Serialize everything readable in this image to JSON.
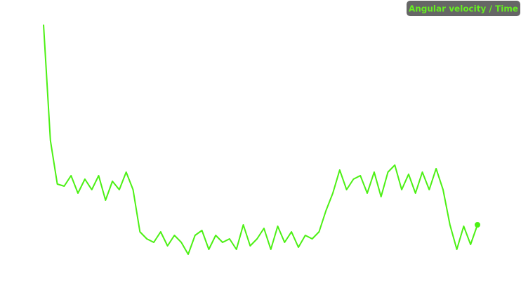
{
  "chart_data": {
    "type": "line",
    "title": "Angular velocity / Time",
    "color": "#4cf014",
    "ylim": [
      0,
      400
    ],
    "values": [
      365,
      200,
      138,
      135,
      150,
      125,
      145,
      130,
      150,
      115,
      142,
      130,
      155,
      130,
      70,
      60,
      55,
      70,
      50,
      65,
      55,
      38,
      65,
      72,
      45,
      65,
      55,
      60,
      45,
      80,
      50,
      60,
      75,
      45,
      78,
      55,
      70,
      48,
      65,
      60,
      70,
      100,
      125,
      158,
      130,
      145,
      150,
      125,
      155,
      120,
      155,
      165,
      130,
      152,
      125,
      155,
      130,
      160,
      130,
      80,
      45,
      78,
      52,
      80
    ]
  }
}
